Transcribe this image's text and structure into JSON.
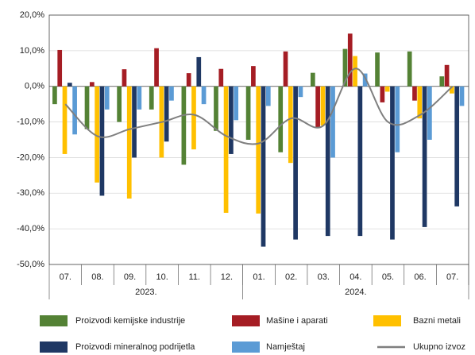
{
  "chart_data": {
    "type": "bar",
    "groups": [
      {
        "label": "2023.",
        "categories": [
          "07.",
          "08.",
          "09.",
          "10.",
          "11.",
          "12."
        ]
      },
      {
        "label": "2024.",
        "categories": [
          "01.",
          "02.",
          "03.",
          "04.",
          "05.",
          "06.",
          "07."
        ]
      }
    ],
    "series": [
      {
        "name": "Proizvodi kemijske industrije",
        "color": "#548235",
        "type": "bar",
        "values": [
          -5,
          -12,
          -10,
          -6.5,
          -22,
          -12.5,
          -15,
          -18.5,
          3.8,
          10.5,
          9.5,
          9.8,
          2.8
        ]
      },
      {
        "name": "Mašine i aparati",
        "color": "#a51d24",
        "type": "bar",
        "values": [
          10.2,
          1.2,
          4.8,
          10.7,
          3.7,
          4.9,
          5.7,
          9.8,
          -11.5,
          14.8,
          -4.5,
          -4,
          6
        ]
      },
      {
        "name": "Bazni metali",
        "color": "#ffc000",
        "type": "bar",
        "values": [
          -19,
          -27,
          -31.5,
          -20,
          -17.7,
          -35.5,
          -35.7,
          -21.5,
          -11,
          8.5,
          -1.5,
          -9,
          -2
        ]
      },
      {
        "name": "Proizvodi mineralnog podrijetla",
        "color": "#1f3864",
        "type": "bar",
        "values": [
          1,
          -30.7,
          -20,
          -15.5,
          8.2,
          -19,
          -45,
          -43,
          -42,
          -42,
          -43,
          -39.5,
          -33.7
        ]
      },
      {
        "name": "Namještaj",
        "color": "#5b9bd5",
        "type": "bar",
        "values": [
          -13.5,
          -6.5,
          -6.5,
          -4,
          -5,
          -9.5,
          -5.5,
          -3,
          -20,
          3.6,
          -18.5,
          -15,
          -5.5
        ]
      },
      {
        "name": "Ukupno izvoz",
        "color": "#7f7f7f",
        "type": "line",
        "values": [
          -5,
          -14,
          -12,
          -10,
          -8,
          -14,
          -16,
          -9,
          -11,
          5,
          -10,
          -8,
          0
        ]
      }
    ],
    "ylim": [
      -50,
      20
    ],
    "yticks": [
      {
        "value": -50,
        "label": "-50,0%"
      },
      {
        "value": -40,
        "label": "-40,0%"
      },
      {
        "value": -30,
        "label": "-30,0%"
      },
      {
        "value": -20,
        "label": "-20,0%"
      },
      {
        "value": -10,
        "label": "-10,0%"
      },
      {
        "value": 0,
        "label": "0,0%"
      },
      {
        "value": 10,
        "label": "10,0%"
      },
      {
        "value": 20,
        "label": "20,0%"
      }
    ],
    "grid": true
  }
}
